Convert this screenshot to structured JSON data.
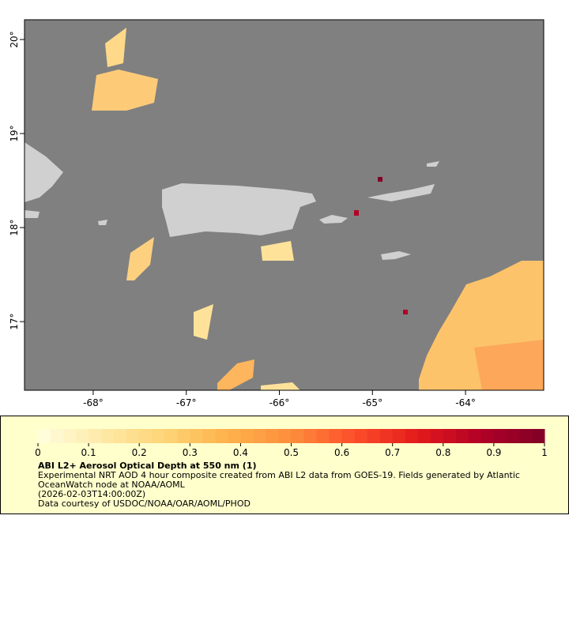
{
  "map": {
    "xlim": [
      -68.738,
      -63.16
    ],
    "ylim": [
      16.27,
      20.21
    ],
    "xticks": [
      {
        "value": -68,
        "label": "-68°"
      },
      {
        "value": -67,
        "label": "-67°"
      },
      {
        "value": -66,
        "label": "-66°"
      },
      {
        "value": -65,
        "label": "-65°"
      },
      {
        "value": -64,
        "label": "-64°"
      }
    ],
    "yticks": [
      {
        "value": 17,
        "label": "17°"
      },
      {
        "value": 18,
        "label": "18°"
      },
      {
        "value": 19,
        "label": "19°"
      },
      {
        "value": 20,
        "label": "20°"
      }
    ],
    "ocean_color": "#808080",
    "land_color": "#d0d0d0"
  },
  "colorbar": {
    "lim": [
      0,
      1
    ],
    "ticks": [
      0,
      0.1,
      0.2,
      0.3,
      0.4,
      0.5,
      0.6,
      0.7,
      0.8,
      0.9,
      1
    ],
    "colors": [
      "#ffffe0",
      "#fee9a8",
      "#fed476",
      "#feb24c",
      "#fd8d3c",
      "#fc4e2a",
      "#e31a1c",
      "#b10026",
      "#800026"
    ]
  },
  "caption": {
    "title": "ABI L2+ Aerosol Optical Depth at 550 nm (1)",
    "description": "Experimental NRT AOD 4 hour composite created from ABI L2 data from GOES-19. Fields generated by Atlantic OceanWatch node at NOAA/AOML",
    "time": "(2026-02-03T14:00:00Z)",
    "credit": "Data courtesy of USDOC/NOAA/OAR/AOML/PHOD"
  }
}
